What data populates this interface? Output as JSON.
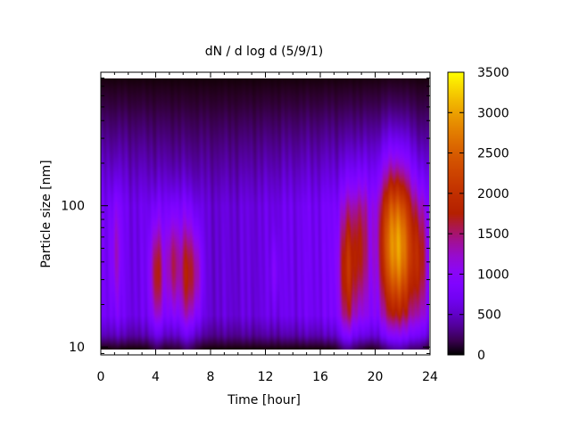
{
  "chart_data": {
    "type": "heatmap",
    "title": "dN / d log d (5/9/1)",
    "xlabel": "Time [hour]",
    "ylabel": "Particle size [nm]",
    "xlim": [
      0,
      24
    ],
    "ylim": [
      8.8,
      880
    ],
    "yscale": "log",
    "xticks": [
      0,
      4,
      8,
      12,
      16,
      20,
      24
    ],
    "xtick_labels": [
      "0",
      "4",
      "8",
      "12",
      "16",
      "20",
      "24"
    ],
    "yticks": [
      10,
      100
    ],
    "ytick_labels": [
      "10",
      "100"
    ],
    "colorbar": {
      "range": [
        0,
        3500
      ],
      "ticks": [
        0,
        500,
        1000,
        1500,
        2000,
        2500,
        3000,
        3500
      ],
      "tick_labels": [
        "0",
        "500",
        "1000",
        "1500",
        "2000",
        "2500",
        "3000",
        "3500"
      ],
      "colormap": "gnuplot-pm3d-black-purple-red-yellow"
    },
    "background_level": 800,
    "features": [
      {
        "t": 1.1,
        "d": 45,
        "width_h": 0.25,
        "width_dec": 0.3,
        "value": 1350
      },
      {
        "t": 4.1,
        "d": 32,
        "width_h": 0.35,
        "width_dec": 0.28,
        "value": 1950
      },
      {
        "t": 5.3,
        "d": 37,
        "width_h": 0.35,
        "width_dec": 0.28,
        "value": 1800
      },
      {
        "t": 6.3,
        "d": 32,
        "width_h": 0.35,
        "width_dec": 0.3,
        "value": 1950
      },
      {
        "t": 7.0,
        "d": 32,
        "width_h": 0.3,
        "width_dec": 0.25,
        "value": 1500
      },
      {
        "t": 12.7,
        "d": 33,
        "width_h": 0.2,
        "width_dec": 0.18,
        "value": 1100
      },
      {
        "t": 18.0,
        "d": 35,
        "width_h": 0.45,
        "width_dec": 0.35,
        "value": 1950
      },
      {
        "t": 19.0,
        "d": 50,
        "width_h": 0.4,
        "width_dec": 0.35,
        "value": 1700
      },
      {
        "t": 21.0,
        "d": 55,
        "width_h": 0.6,
        "width_dec": 0.4,
        "value": 2100
      },
      {
        "t": 22.0,
        "d": 50,
        "width_h": 0.6,
        "width_dec": 0.4,
        "value": 2600
      },
      {
        "t": 23.3,
        "d": 40,
        "width_h": 0.4,
        "width_dec": 0.35,
        "value": 1800
      }
    ]
  }
}
